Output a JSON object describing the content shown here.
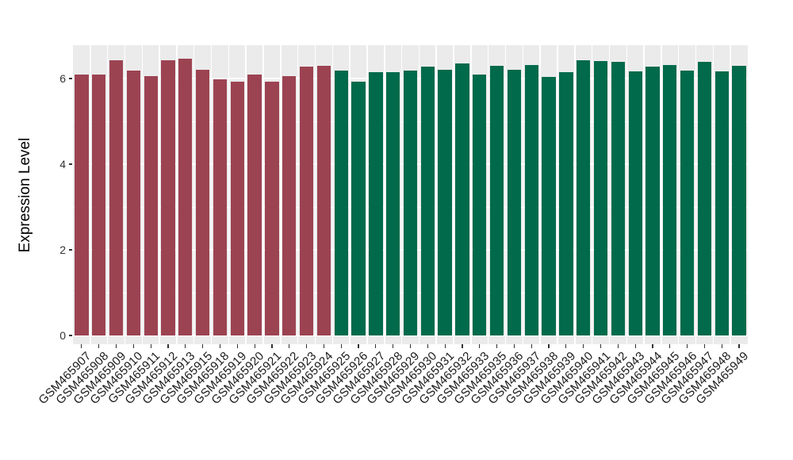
{
  "chart_data": {
    "type": "bar",
    "title": "",
    "xlabel": "",
    "ylabel": "Expression Level",
    "ylim": [
      0,
      6.8
    ],
    "yticks_major": [
      0,
      2,
      4,
      6
    ],
    "yticks_minor": [
      1,
      3,
      5
    ],
    "grid": "on",
    "legend": "none",
    "colors": {
      "panel_bg": "#EBEBEB",
      "grid": "#FFFFFF",
      "tick": "#333333",
      "group_red": "#9C4352",
      "group_green": "#016A4B"
    },
    "bars": [
      {
        "label": "GSM465907",
        "value": 6.09,
        "group": "group_red"
      },
      {
        "label": "GSM465908",
        "value": 6.1,
        "group": "group_red"
      },
      {
        "label": "GSM465909",
        "value": 6.43,
        "group": "group_red"
      },
      {
        "label": "GSM465910",
        "value": 6.18,
        "group": "group_red"
      },
      {
        "label": "GSM465911",
        "value": 6.06,
        "group": "group_red"
      },
      {
        "label": "GSM465912",
        "value": 6.43,
        "group": "group_red"
      },
      {
        "label": "GSM465913",
        "value": 6.47,
        "group": "group_red"
      },
      {
        "label": "GSM465915",
        "value": 6.21,
        "group": "group_red"
      },
      {
        "label": "GSM465918",
        "value": 5.99,
        "group": "group_red"
      },
      {
        "label": "GSM465919",
        "value": 5.92,
        "group": "group_red"
      },
      {
        "label": "GSM465920",
        "value": 6.09,
        "group": "group_red"
      },
      {
        "label": "GSM465921",
        "value": 5.93,
        "group": "group_red"
      },
      {
        "label": "GSM465922",
        "value": 6.06,
        "group": "group_red"
      },
      {
        "label": "GSM465923",
        "value": 6.28,
        "group": "group_red"
      },
      {
        "label": "GSM465924",
        "value": 6.3,
        "group": "group_red"
      },
      {
        "label": "GSM465925",
        "value": 6.18,
        "group": "group_green"
      },
      {
        "label": "GSM465926",
        "value": 5.93,
        "group": "group_green"
      },
      {
        "label": "GSM465927",
        "value": 6.15,
        "group": "group_green"
      },
      {
        "label": "GSM465928",
        "value": 6.14,
        "group": "group_green"
      },
      {
        "label": "GSM465929",
        "value": 6.19,
        "group": "group_green"
      },
      {
        "label": "GSM465930",
        "value": 6.27,
        "group": "group_green"
      },
      {
        "label": "GSM465931",
        "value": 6.21,
        "group": "group_green"
      },
      {
        "label": "GSM465932",
        "value": 6.36,
        "group": "group_green"
      },
      {
        "label": "GSM465933",
        "value": 6.1,
        "group": "group_green"
      },
      {
        "label": "GSM465935",
        "value": 6.3,
        "group": "group_green"
      },
      {
        "label": "GSM465936",
        "value": 6.2,
        "group": "group_green"
      },
      {
        "label": "GSM465937",
        "value": 6.32,
        "group": "group_green"
      },
      {
        "label": "GSM465938",
        "value": 6.04,
        "group": "group_green"
      },
      {
        "label": "GSM465939",
        "value": 6.15,
        "group": "group_green"
      },
      {
        "label": "GSM465940",
        "value": 6.43,
        "group": "group_green"
      },
      {
        "label": "GSM465941",
        "value": 6.41,
        "group": "group_green"
      },
      {
        "label": "GSM465942",
        "value": 6.38,
        "group": "group_green"
      },
      {
        "label": "GSM465943",
        "value": 6.17,
        "group": "group_green"
      },
      {
        "label": "GSM465944",
        "value": 6.28,
        "group": "group_green"
      },
      {
        "label": "GSM465945",
        "value": 6.32,
        "group": "group_green"
      },
      {
        "label": "GSM465946",
        "value": 6.19,
        "group": "group_green"
      },
      {
        "label": "GSM465947",
        "value": 6.39,
        "group": "group_green"
      },
      {
        "label": "GSM465948",
        "value": 6.16,
        "group": "group_green"
      },
      {
        "label": "GSM465949",
        "value": 6.29,
        "group": "group_green"
      }
    ]
  }
}
